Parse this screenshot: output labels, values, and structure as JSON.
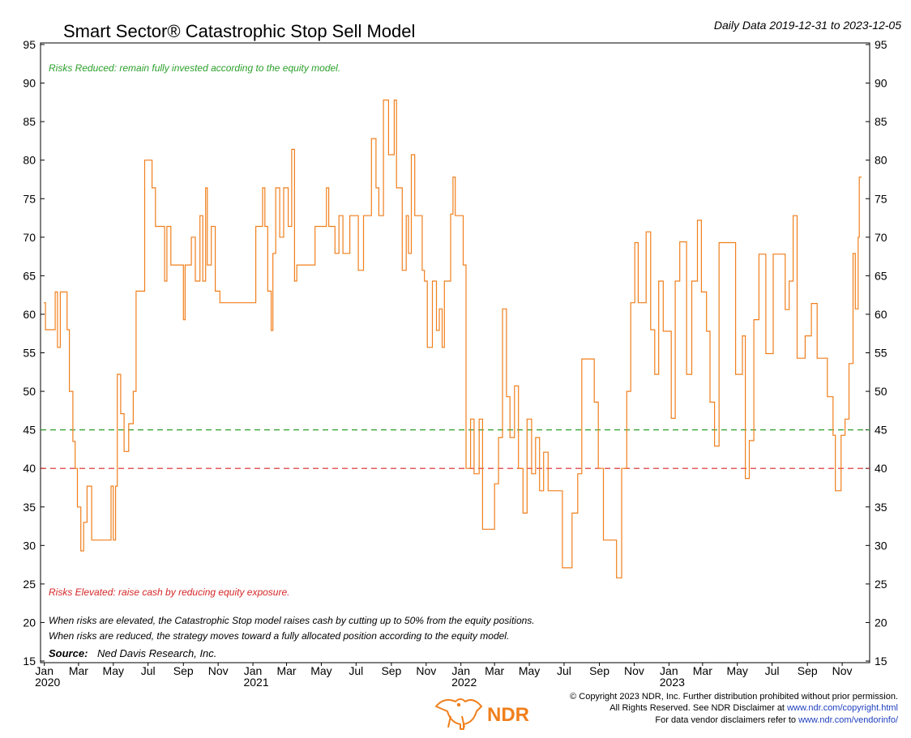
{
  "colors": {
    "series": "#f07f1c",
    "upper_threshold": "#2ca02c",
    "lower_threshold": "#d62728",
    "link": "#1f3fbf",
    "logo": "#f07f1c"
  },
  "header": {
    "title": "Smart Sector® Catastrophic Stop Sell Model",
    "date_range": "Daily Data 2019-12-31 to 2023-12-05"
  },
  "annotations": {
    "risks_reduced": "Risks Reduced: remain fully invested according to the equity model.",
    "risks_elevated": "Risks Elevated: raise cash by reducing equity exposure.",
    "note_line1": "When risks are elevated, the Catastrophic Stop model raises cash by cutting up to 50% from the equity positions.",
    "note_line2": "When risks are reduced, the strategy moves toward a fully allocated position according to the equity model.",
    "source_label": "Source:",
    "source_value": "Ned Davis Research, Inc."
  },
  "footer": {
    "line1": "© Copyright 2023 NDR, Inc. Further distribution prohibited without prior permission.",
    "line2_text": "All Rights Reserved. See NDR Disclaimer at ",
    "line2_link": "www.ndr.com/copyright.html",
    "line3_text": "For data vendor disclaimers refer to ",
    "line3_link": "www.ndr.com/vendorinfo/",
    "logo_text": "NDR",
    "logo_icon": "bull-bear-icon"
  },
  "chart_data": {
    "type": "line",
    "title": "Smart Sector® Catastrophic Stop Sell Model",
    "xlabel": "",
    "ylabel": "",
    "ylim": [
      15,
      95
    ],
    "yticks": [
      15,
      20,
      25,
      30,
      35,
      40,
      45,
      50,
      55,
      60,
      65,
      70,
      75,
      80,
      85,
      90,
      95
    ],
    "xlim": [
      "2019-12-31",
      "2023-12-05"
    ],
    "month_ticks": [
      {
        "label": "Jan",
        "date": "2020-01-01"
      },
      {
        "label": "Mar",
        "date": "2020-03-01"
      },
      {
        "label": "May",
        "date": "2020-05-01"
      },
      {
        "label": "Jul",
        "date": "2020-07-01"
      },
      {
        "label": "Sep",
        "date": "2020-09-01"
      },
      {
        "label": "Nov",
        "date": "2020-11-01"
      },
      {
        "label": "Jan",
        "date": "2021-01-01"
      },
      {
        "label": "Mar",
        "date": "2021-03-01"
      },
      {
        "label": "May",
        "date": "2021-05-01"
      },
      {
        "label": "Jul",
        "date": "2021-07-01"
      },
      {
        "label": "Sep",
        "date": "2021-09-01"
      },
      {
        "label": "Nov",
        "date": "2021-11-01"
      },
      {
        "label": "Jan",
        "date": "2022-01-01"
      },
      {
        "label": "Mar",
        "date": "2022-03-01"
      },
      {
        "label": "May",
        "date": "2022-05-01"
      },
      {
        "label": "Jul",
        "date": "2022-07-01"
      },
      {
        "label": "Sep",
        "date": "2022-09-01"
      },
      {
        "label": "Nov",
        "date": "2022-11-01"
      },
      {
        "label": "Jan",
        "date": "2023-01-01"
      },
      {
        "label": "Mar",
        "date": "2023-03-01"
      },
      {
        "label": "May",
        "date": "2023-05-01"
      },
      {
        "label": "Jul",
        "date": "2023-07-01"
      },
      {
        "label": "Sep",
        "date": "2023-09-01"
      },
      {
        "label": "Nov",
        "date": "2023-11-01"
      }
    ],
    "year_labels": [
      {
        "label": "2020",
        "date": "2020-01-01"
      },
      {
        "label": "2021",
        "date": "2021-01-01"
      },
      {
        "label": "2022",
        "date": "2022-01-01"
      },
      {
        "label": "2023",
        "date": "2023-01-01"
      }
    ],
    "thresholds": [
      {
        "value": 45,
        "color": "#2ca02c",
        "style": "dashed"
      },
      {
        "value": 40,
        "color": "#d62728",
        "style": "dashed"
      }
    ],
    "grid": false,
    "series": [
      {
        "color": "#f07f1c",
        "step": true,
        "points": [
          [
            "2019-12-31",
            61.5
          ],
          [
            "2020-01-03",
            58
          ],
          [
            "2020-01-20",
            62.9
          ],
          [
            "2020-01-24",
            55.7
          ],
          [
            "2020-01-29",
            62.9
          ],
          [
            "2020-02-10",
            58
          ],
          [
            "2020-02-14",
            50
          ],
          [
            "2020-02-20",
            43.5
          ],
          [
            "2020-02-24",
            40
          ],
          [
            "2020-02-28",
            35
          ],
          [
            "2020-03-05",
            29.3
          ],
          [
            "2020-03-10",
            33
          ],
          [
            "2020-03-16",
            37.7
          ],
          [
            "2020-03-24",
            30.7
          ],
          [
            "2020-04-27",
            37.7
          ],
          [
            "2020-05-01",
            30.7
          ],
          [
            "2020-05-05",
            37.7
          ],
          [
            "2020-05-08",
            52.2
          ],
          [
            "2020-05-14",
            47.1
          ],
          [
            "2020-05-20",
            42.2
          ],
          [
            "2020-05-28",
            45.8
          ],
          [
            "2020-06-05",
            50
          ],
          [
            "2020-06-10",
            63
          ],
          [
            "2020-06-25",
            80
          ],
          [
            "2020-07-08",
            76.4
          ],
          [
            "2020-07-14",
            71.4
          ],
          [
            "2020-07-30",
            64.3
          ],
          [
            "2020-08-03",
            71.4
          ],
          [
            "2020-08-10",
            66.4
          ],
          [
            "2020-09-01",
            59.3
          ],
          [
            "2020-09-04",
            66.4
          ],
          [
            "2020-09-15",
            70
          ],
          [
            "2020-09-22",
            64.3
          ],
          [
            "2020-09-30",
            72.8
          ],
          [
            "2020-10-05",
            64.3
          ],
          [
            "2020-10-10",
            76.4
          ],
          [
            "2020-10-13",
            66.4
          ],
          [
            "2020-10-20",
            71.4
          ],
          [
            "2020-10-27",
            63
          ],
          [
            "2020-11-04",
            61.5
          ],
          [
            "2020-12-15",
            61.5
          ],
          [
            "2020-12-28",
            61.5
          ],
          [
            "2021-01-06",
            71.4
          ],
          [
            "2021-01-18",
            76.4
          ],
          [
            "2021-01-22",
            71.4
          ],
          [
            "2021-01-27",
            63
          ],
          [
            "2021-02-02",
            57.9
          ],
          [
            "2021-02-05",
            67.9
          ],
          [
            "2021-02-10",
            76.4
          ],
          [
            "2021-02-17",
            70
          ],
          [
            "2021-02-24",
            76.4
          ],
          [
            "2021-03-04",
            71.4
          ],
          [
            "2021-03-10",
            81.4
          ],
          [
            "2021-03-15",
            64.3
          ],
          [
            "2021-03-19",
            66.4
          ],
          [
            "2021-04-15",
            66.4
          ],
          [
            "2021-04-20",
            71.4
          ],
          [
            "2021-05-10",
            76.4
          ],
          [
            "2021-05-14",
            71.4
          ],
          [
            "2021-05-25",
            67.9
          ],
          [
            "2021-06-01",
            72.8
          ],
          [
            "2021-06-08",
            67.9
          ],
          [
            "2021-06-20",
            72.8
          ],
          [
            "2021-07-05",
            65.7
          ],
          [
            "2021-07-14",
            72.8
          ],
          [
            "2021-07-28",
            82.8
          ],
          [
            "2021-08-05",
            76.4
          ],
          [
            "2021-08-10",
            72.8
          ],
          [
            "2021-08-18",
            87.8
          ],
          [
            "2021-08-27",
            80.7
          ],
          [
            "2021-09-06",
            87.8
          ],
          [
            "2021-09-10",
            76.4
          ],
          [
            "2021-09-20",
            65.7
          ],
          [
            "2021-09-27",
            72.8
          ],
          [
            "2021-10-01",
            67.9
          ],
          [
            "2021-10-06",
            80.7
          ],
          [
            "2021-10-12",
            72.8
          ],
          [
            "2021-10-25",
            65.7
          ],
          [
            "2021-10-29",
            64.3
          ],
          [
            "2021-11-03",
            55.7
          ],
          [
            "2021-11-12",
            64.3
          ],
          [
            "2021-11-19",
            57.9
          ],
          [
            "2021-11-24",
            60.7
          ],
          [
            "2021-11-29",
            55.7
          ],
          [
            "2021-12-03",
            64.3
          ],
          [
            "2021-12-14",
            73
          ],
          [
            "2021-12-18",
            77.8
          ],
          [
            "2021-12-22",
            72.8
          ],
          [
            "2022-01-05",
            66.4
          ],
          [
            "2022-01-10",
            40
          ],
          [
            "2022-01-18",
            46.4
          ],
          [
            "2022-01-24",
            39.3
          ],
          [
            "2022-02-02",
            46.4
          ],
          [
            "2022-02-08",
            32.1
          ],
          [
            "2022-02-23",
            32.1
          ],
          [
            "2022-03-01",
            38
          ],
          [
            "2022-03-08",
            44
          ],
          [
            "2022-03-15",
            60.7
          ],
          [
            "2022-03-22",
            49.3
          ],
          [
            "2022-03-28",
            44
          ],
          [
            "2022-04-05",
            50.7
          ],
          [
            "2022-04-12",
            40
          ],
          [
            "2022-04-20",
            34.2
          ],
          [
            "2022-04-27",
            46.4
          ],
          [
            "2022-05-05",
            39.3
          ],
          [
            "2022-05-12",
            44
          ],
          [
            "2022-05-19",
            37.1
          ],
          [
            "2022-05-26",
            42.1
          ],
          [
            "2022-06-03",
            37.1
          ],
          [
            "2022-06-13",
            37.1
          ],
          [
            "2022-06-28",
            27.1
          ],
          [
            "2022-07-15",
            34.2
          ],
          [
            "2022-07-25",
            39.3
          ],
          [
            "2022-08-01",
            54.2
          ],
          [
            "2022-08-23",
            48.6
          ],
          [
            "2022-08-30",
            40
          ],
          [
            "2022-09-08",
            30.7
          ],
          [
            "2022-09-26",
            30.7
          ],
          [
            "2022-10-01",
            25.8
          ],
          [
            "2022-10-10",
            40
          ],
          [
            "2022-10-19",
            50
          ],
          [
            "2022-10-26",
            61.5
          ],
          [
            "2022-11-02",
            69.3
          ],
          [
            "2022-11-08",
            61.5
          ],
          [
            "2022-11-22",
            70.7
          ],
          [
            "2022-11-30",
            58
          ],
          [
            "2022-12-07",
            52.2
          ],
          [
            "2022-12-14",
            64.3
          ],
          [
            "2022-12-22",
            57.8
          ],
          [
            "2023-01-05",
            46.5
          ],
          [
            "2023-01-12",
            64.3
          ],
          [
            "2023-01-20",
            69.4
          ],
          [
            "2023-02-01",
            52.2
          ],
          [
            "2023-02-10",
            64.3
          ],
          [
            "2023-02-20",
            72.2
          ],
          [
            "2023-02-27",
            62.9
          ],
          [
            "2023-03-08",
            57.8
          ],
          [
            "2023-03-14",
            48.6
          ],
          [
            "2023-03-22",
            42.9
          ],
          [
            "2023-03-30",
            69.3
          ],
          [
            "2023-04-20",
            69.3
          ],
          [
            "2023-04-28",
            52.2
          ],
          [
            "2023-05-10",
            57.2
          ],
          [
            "2023-05-15",
            38.7
          ],
          [
            "2023-05-22",
            43.6
          ],
          [
            "2023-05-30",
            59.3
          ],
          [
            "2023-06-08",
            67.8
          ],
          [
            "2023-06-20",
            54.9
          ],
          [
            "2023-07-03",
            67.8
          ],
          [
            "2023-07-17",
            67.8
          ],
          [
            "2023-07-24",
            60.6
          ],
          [
            "2023-07-31",
            64.3
          ],
          [
            "2023-08-07",
            72.8
          ],
          [
            "2023-08-14",
            54.3
          ],
          [
            "2023-08-28",
            57.2
          ],
          [
            "2023-09-08",
            61.4
          ],
          [
            "2023-09-18",
            54.3
          ],
          [
            "2023-10-06",
            49.3
          ],
          [
            "2023-10-16",
            44.3
          ],
          [
            "2023-10-20",
            37.1
          ],
          [
            "2023-10-30",
            44.3
          ],
          [
            "2023-11-06",
            46.4
          ],
          [
            "2023-11-13",
            53.6
          ],
          [
            "2023-11-20",
            67.9
          ],
          [
            "2023-11-24",
            60.7
          ],
          [
            "2023-11-29",
            70
          ],
          [
            "2023-12-01",
            77.8
          ],
          [
            "2023-12-05",
            77.8
          ]
        ]
      }
    ]
  }
}
